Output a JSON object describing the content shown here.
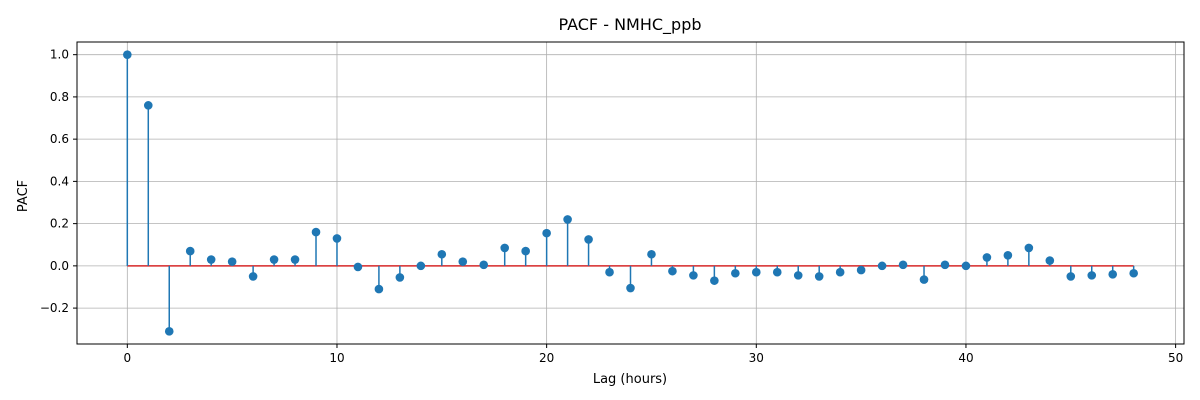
{
  "chart_data": {
    "type": "stem",
    "title": "PACF - NMHC_ppb",
    "xlabel": "Lag (hours)",
    "ylabel": "PACF",
    "xlim": [
      -2.4,
      50.4
    ],
    "ylim": [
      -0.37,
      1.06
    ],
    "xticks": [
      0,
      10,
      20,
      30,
      40,
      50
    ],
    "xtick_labels": [
      "0",
      "10",
      "20",
      "30",
      "40",
      "50"
    ],
    "yticks": [
      -0.2,
      0.0,
      0.2,
      0.4,
      0.6,
      0.8,
      1.0
    ],
    "ytick_labels": [
      "−0.2",
      "0.0",
      "0.2",
      "0.4",
      "0.6",
      "0.8",
      "1.0"
    ],
    "grid": true,
    "x": [
      0,
      1,
      2,
      3,
      4,
      5,
      6,
      7,
      8,
      9,
      10,
      11,
      12,
      13,
      14,
      15,
      16,
      17,
      18,
      19,
      20,
      21,
      22,
      23,
      24,
      25,
      26,
      27,
      28,
      29,
      30,
      31,
      32,
      33,
      34,
      35,
      36,
      37,
      38,
      39,
      40,
      41,
      42,
      43,
      44,
      45,
      46,
      47,
      48
    ],
    "values": [
      1.0,
      0.76,
      -0.31,
      0.07,
      0.03,
      0.02,
      -0.05,
      0.03,
      0.03,
      0.16,
      0.13,
      -0.005,
      -0.11,
      -0.055,
      0.0,
      0.055,
      0.02,
      0.005,
      0.085,
      0.07,
      0.155,
      0.22,
      0.125,
      -0.03,
      -0.105,
      0.055,
      -0.025,
      -0.045,
      -0.07,
      -0.035,
      -0.03,
      -0.03,
      -0.045,
      -0.05,
      -0.03,
      -0.02,
      0.0,
      0.005,
      -0.065,
      0.005,
      0.0,
      0.04,
      0.05,
      0.085,
      0.025,
      -0.05,
      -0.045,
      -0.04,
      -0.035
    ],
    "colors": {
      "stem": "#1f77b4",
      "marker": "#1f77b4",
      "baseline": "#d62728",
      "grid": "#b0b0b0",
      "axis": "#000000"
    }
  }
}
